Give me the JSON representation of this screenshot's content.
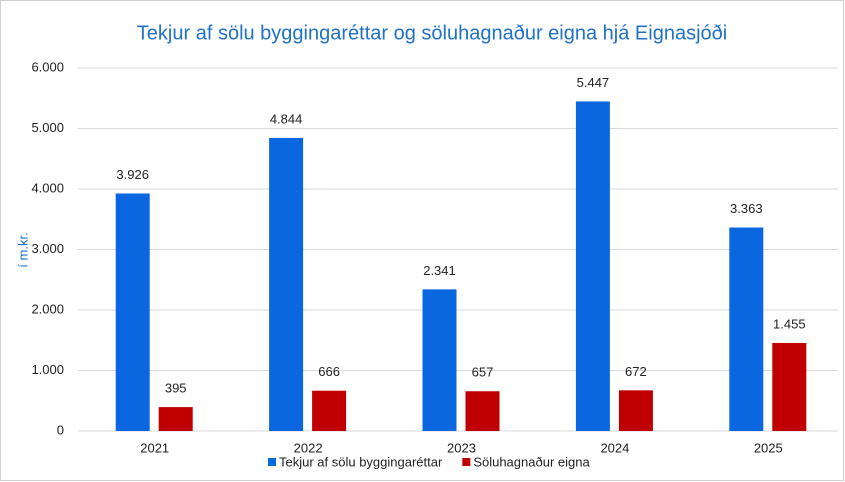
{
  "chart_data": {
    "type": "bar",
    "title": "Tekjur af sölu byggingaréttar og söluhagnaður eigna hjá Eignasjóði",
    "y_label": "í m.kr.",
    "categories": [
      "2021",
      "2022",
      "2023",
      "2024",
      "2025"
    ],
    "series": [
      {
        "name": "Tekjur af sölu byggingaréttar",
        "color": "#0b67e0",
        "values": [
          3926,
          4844,
          2341,
          5447,
          3363
        ],
        "value_labels": [
          "3.926",
          "4.844",
          "2.341",
          "5.447",
          "3.363"
        ]
      },
      {
        "name": "Söluhagnaður eigna",
        "color": "#c00000",
        "values": [
          395,
          666,
          657,
          672,
          1455
        ],
        "value_labels": [
          "395",
          "666",
          "657",
          "672",
          "1.455"
        ]
      }
    ],
    "ylim": [
      0,
      6000
    ],
    "yticks": [
      0,
      {
        "value": 1000,
        "label": "1.000"
      },
      {
        "value": 2000,
        "label": "2.000"
      },
      {
        "value": 3000,
        "label": "3.000"
      },
      {
        "value": 4000,
        "label": "4.000"
      },
      {
        "value": 5000,
        "label": "5.000"
      },
      {
        "value": 6000,
        "label": "6.000"
      }
    ],
    "grid": true,
    "legend": "bottom"
  }
}
